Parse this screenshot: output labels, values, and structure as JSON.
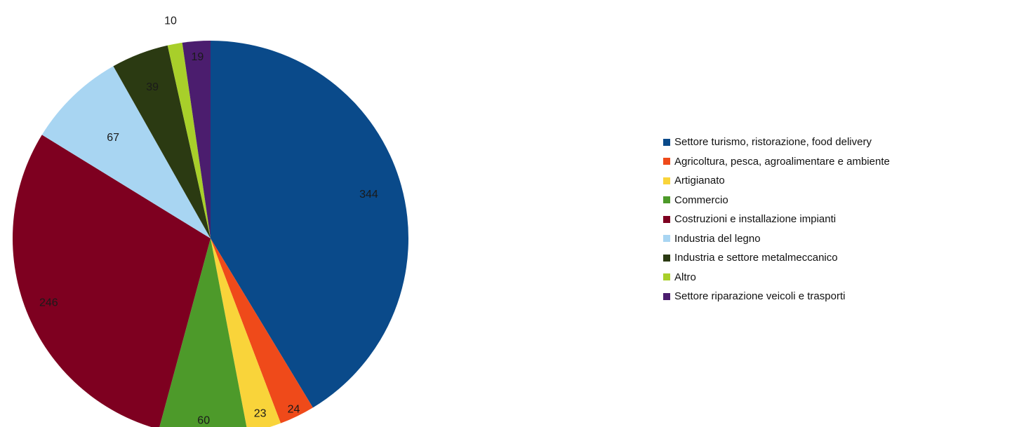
{
  "chart_data": {
    "type": "pie",
    "title": "",
    "legend_position": "right",
    "start_angle": "top, clockwise",
    "slices": [
      {
        "label": "Settore turismo, ristorazione, food delivery",
        "value": 344,
        "color": "#0a4a8a"
      },
      {
        "label": "Agricoltura, pesca, agroalimentare e ambiente",
        "value": 24,
        "color": "#ef4a1a"
      },
      {
        "label": "Artigianato",
        "value": 23,
        "color": "#f9d43a"
      },
      {
        "label": "Commercio",
        "value": 60,
        "color": "#4d9a2a"
      },
      {
        "label": "Costruzioni e installazione impianti",
        "value": 246,
        "color": "#7e0020"
      },
      {
        "label": "Industria del legno",
        "value": 67,
        "color": "#a8d5f2"
      },
      {
        "label": "Industria e settore metalmeccanico",
        "value": 39,
        "color": "#2b3a12"
      },
      {
        "label": "Altro",
        "value": 10,
        "color": "#a8cf2a"
      },
      {
        "label": "Settore riparazione veicoli e trasporti",
        "value": 19,
        "color": "#4b1d6e"
      }
    ]
  }
}
